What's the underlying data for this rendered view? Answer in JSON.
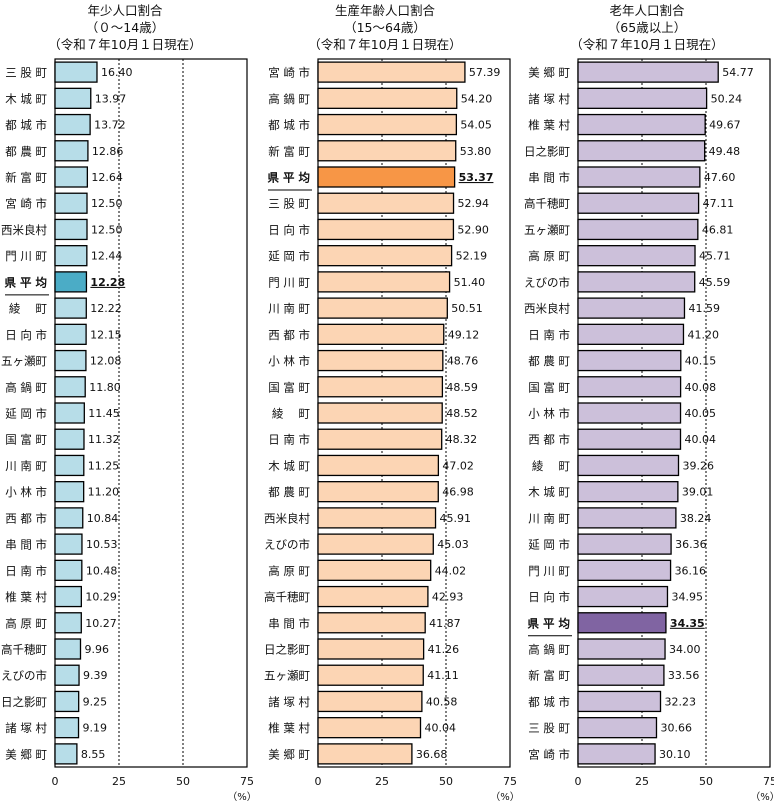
{
  "chart_data": [
    {
      "type": "bar",
      "orientation": "horizontal",
      "title": "年少人口割合",
      "subtitle1": "（０～14歳）",
      "subtitle2": "（令和７年10月１日現在）",
      "unit": "（%）",
      "xlim": [
        0,
        75
      ],
      "xticks": [
        0,
        25,
        50,
        75
      ],
      "grid": "dotted vertical at 25 and 50",
      "color": "#b7dde8",
      "highlight_color": "#4bacc6",
      "highlight": "県 平 均",
      "categories": [
        "三 股 町",
        "木 城 町",
        "都 城 市",
        "都 農 町",
        "新 富 町",
        "宮 崎 市",
        "西米良村",
        "門 川 町",
        "県 平 均",
        "綾　 町",
        "日 向 市",
        "五ヶ瀬町",
        "高 鍋 町",
        "延 岡 市",
        "国 富 町",
        "川 南 町",
        "小 林 市",
        "西 都 市",
        "串 間 市",
        "日 南 市",
        "椎 葉 村",
        "高 原 町",
        "高千穂町",
        "えびの市",
        "日之影町",
        "諸 塚 村",
        "美 郷 町"
      ],
      "values": [
        16.4,
        13.97,
        13.72,
        12.86,
        12.64,
        12.5,
        12.5,
        12.44,
        12.28,
        12.22,
        12.15,
        12.08,
        11.8,
        11.45,
        11.32,
        11.25,
        11.2,
        10.84,
        10.53,
        10.48,
        10.29,
        10.27,
        9.96,
        9.39,
        9.25,
        9.19,
        8.55
      ],
      "labels": [
        "16.40",
        "13.97",
        "13.72",
        "12.86",
        "12.64",
        "12.50",
        "12.50",
        "12.44",
        "12.28",
        "12.22",
        "12.15",
        "12.08",
        "11.80",
        "11.45",
        "11.32",
        "11.25",
        "11.20",
        "10.84",
        "10.53",
        "10.48",
        "10.29",
        "10.27",
        "9.96",
        "9.39",
        "9.25",
        "9.19",
        "8.55"
      ]
    },
    {
      "type": "bar",
      "orientation": "horizontal",
      "title": "生産年齢人口割合",
      "subtitle1": "（15～64歳）",
      "subtitle2": "（令和７年10月１日現在）",
      "unit": "（%）",
      "xlim": [
        0,
        75
      ],
      "xticks": [
        0,
        25,
        50,
        75
      ],
      "grid": "dotted vertical at 25 and 50",
      "color": "#fcd5b4",
      "highlight_color": "#f79646",
      "highlight": "県 平 均",
      "categories": [
        "宮 崎 市",
        "高 鍋 町",
        "都 城 市",
        "新 富 町",
        "県 平 均",
        "三 股 町",
        "日 向 市",
        "延 岡 市",
        "門 川 町",
        "川 南 町",
        "西 都 市",
        "小 林 市",
        "国 富 町",
        "綾　 町",
        "日 南 市",
        "木 城 町",
        "都 農 町",
        "西米良村",
        "えびの市",
        "高 原 町",
        "高千穂町",
        "串 間 市",
        "日之影町",
        "五ヶ瀬町",
        "諸 塚 村",
        "椎 葉 村",
        "美 郷 町"
      ],
      "values": [
        57.39,
        54.2,
        54.05,
        53.8,
        53.37,
        52.94,
        52.9,
        52.19,
        51.4,
        50.51,
        49.12,
        48.76,
        48.59,
        48.52,
        48.32,
        47.02,
        46.98,
        45.91,
        45.03,
        44.02,
        42.93,
        41.87,
        41.26,
        41.11,
        40.58,
        40.04,
        36.68
      ],
      "labels": [
        "57.39",
        "54.20",
        "54.05",
        "53.80",
        "53.37",
        "52.94",
        "52.90",
        "52.19",
        "51.40",
        "50.51",
        "49.12",
        "48.76",
        "48.59",
        "48.52",
        "48.32",
        "47.02",
        "46.98",
        "45.91",
        "45.03",
        "44.02",
        "42.93",
        "41.87",
        "41.26",
        "41.11",
        "40.58",
        "40.04",
        "36.68"
      ]
    },
    {
      "type": "bar",
      "orientation": "horizontal",
      "title": "老年人口割合",
      "subtitle1": "（65歳以上）",
      "subtitle2": "（令和７年10月１日現在）",
      "unit": "（%）",
      "xlim": [
        0,
        75
      ],
      "xticks": [
        0,
        25,
        50,
        75
      ],
      "grid": "dotted vertical at 25 and 50",
      "color": "#ccc0da",
      "highlight_color": "#8064a2",
      "highlight": "県 平 均",
      "categories": [
        "美 郷 町",
        "諸 塚 村",
        "椎 葉 村",
        "日之影町",
        "串 間 市",
        "高千穂町",
        "五ヶ瀬町",
        "高 原 町",
        "えびの市",
        "西米良村",
        "日 南 市",
        "都 農 町",
        "国 富 町",
        "小 林 市",
        "西 都 市",
        "綾　 町",
        "木 城 町",
        "川 南 町",
        "延 岡 市",
        "門 川 町",
        "日 向 市",
        "県 平 均",
        "高 鍋 町",
        "新 富 町",
        "都 城 市",
        "三 股 町",
        "宮 崎 市"
      ],
      "values": [
        54.77,
        50.24,
        49.67,
        49.48,
        47.6,
        47.11,
        46.81,
        45.71,
        45.59,
        41.59,
        41.2,
        40.15,
        40.08,
        40.05,
        40.04,
        39.26,
        39.01,
        38.24,
        36.36,
        36.16,
        34.95,
        34.35,
        34.0,
        33.56,
        32.23,
        30.66,
        30.1
      ],
      "labels": [
        "54.77",
        "50.24",
        "49.67",
        "49.48",
        "47.60",
        "47.11",
        "46.81",
        "45.71",
        "45.59",
        "41.59",
        "41.20",
        "40.15",
        "40.08",
        "40.05",
        "40.04",
        "39.26",
        "39.01",
        "38.24",
        "36.36",
        "36.16",
        "34.95",
        "34.35",
        "34.00",
        "33.56",
        "32.23",
        "30.66",
        "30.10"
      ]
    }
  ]
}
